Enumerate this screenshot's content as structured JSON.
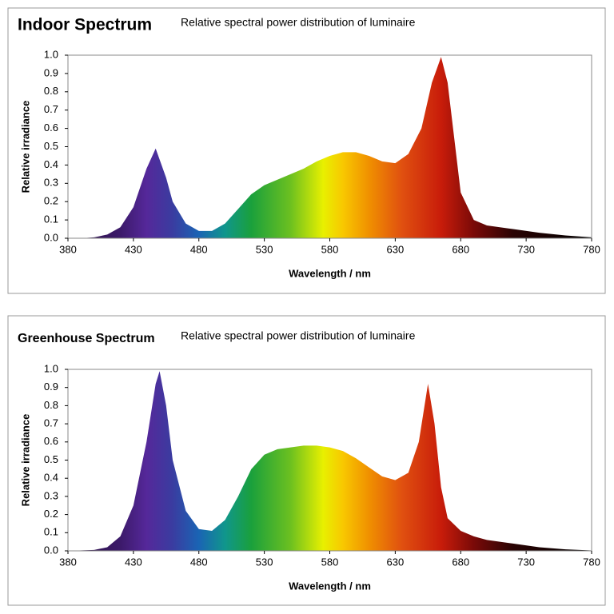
{
  "chart_data": [
    {
      "type": "area",
      "title": "Indoor Spectrum",
      "subtitle": "Relative spectral power distribution of luminaire",
      "xlabel": "Wavelength / nm",
      "ylabel": "Relative irradiance",
      "x": [
        380,
        390,
        400,
        410,
        420,
        430,
        440,
        447,
        455,
        460,
        470,
        480,
        490,
        500,
        510,
        520,
        530,
        540,
        550,
        560,
        570,
        580,
        590,
        600,
        610,
        620,
        630,
        640,
        650,
        658,
        665,
        670,
        675,
        680,
        690,
        700,
        720,
        740,
        760,
        780
      ],
      "values": [
        0,
        0,
        0.005,
        0.02,
        0.06,
        0.17,
        0.38,
        0.49,
        0.33,
        0.2,
        0.08,
        0.04,
        0.04,
        0.08,
        0.16,
        0.24,
        0.29,
        0.32,
        0.35,
        0.38,
        0.42,
        0.45,
        0.47,
        0.47,
        0.45,
        0.42,
        0.41,
        0.46,
        0.6,
        0.85,
        0.99,
        0.85,
        0.55,
        0.25,
        0.1,
        0.07,
        0.05,
        0.03,
        0.015,
        0.005
      ],
      "xlim": [
        380,
        780
      ],
      "xticks": [
        380,
        430,
        480,
        530,
        580,
        630,
        680,
        730,
        780
      ],
      "ylim": [
        0,
        1
      ],
      "yticks": [
        {
          "value": 0,
          "label": "0.0"
        },
        0.1,
        0.2,
        0.3,
        0.4,
        0.5,
        0.6,
        0.7,
        0.8,
        0.9,
        {
          "value": 1,
          "label": "1.0"
        }
      ],
      "grid": false
    },
    {
      "type": "area",
      "title": "Greenhouse Spectrum",
      "subtitle": "Relative spectral power distribution of luminaire",
      "xlabel": "Wavelength / nm",
      "ylabel": "Relative irradiance",
      "x": [
        380,
        400,
        410,
        420,
        430,
        440,
        447,
        450,
        455,
        460,
        470,
        480,
        490,
        500,
        510,
        520,
        530,
        540,
        550,
        560,
        570,
        580,
        590,
        600,
        610,
        620,
        630,
        640,
        648,
        655,
        660,
        665,
        670,
        680,
        690,
        700,
        720,
        740,
        760,
        780
      ],
      "values": [
        0,
        0.005,
        0.02,
        0.08,
        0.25,
        0.6,
        0.92,
        0.99,
        0.8,
        0.5,
        0.22,
        0.12,
        0.11,
        0.17,
        0.3,
        0.45,
        0.53,
        0.56,
        0.57,
        0.58,
        0.58,
        0.57,
        0.55,
        0.51,
        0.46,
        0.41,
        0.39,
        0.43,
        0.6,
        0.92,
        0.7,
        0.35,
        0.18,
        0.11,
        0.08,
        0.06,
        0.04,
        0.02,
        0.008,
        0.002
      ],
      "xlim": [
        380,
        780
      ],
      "xticks": [
        380,
        430,
        480,
        530,
        580,
        630,
        680,
        730,
        780
      ],
      "ylim": [
        0,
        1
      ],
      "yticks": [
        {
          "value": 0,
          "label": "0.0"
        },
        0.1,
        0.2,
        0.3,
        0.4,
        0.5,
        0.6,
        0.7,
        0.8,
        0.9,
        {
          "value": 1,
          "label": "1.0"
        }
      ],
      "grid": false
    }
  ]
}
